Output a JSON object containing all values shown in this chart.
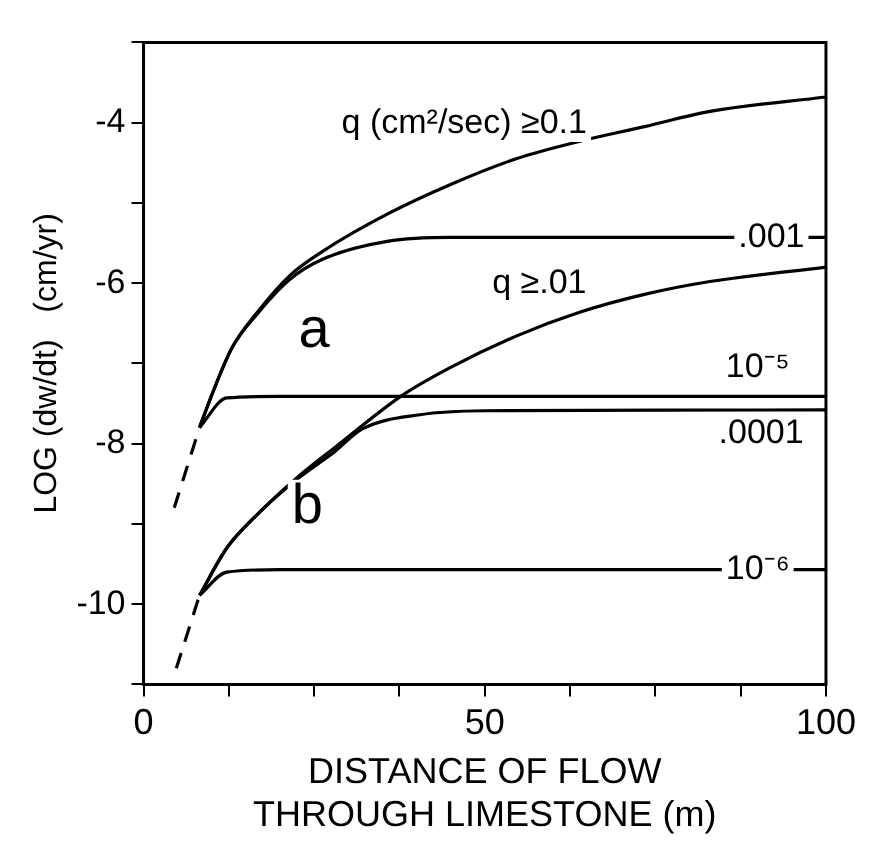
{
  "chart_data": {
    "type": "line",
    "xlabel": "DISTANCE OF FLOW THROUGH LIMESTONE (m)",
    "ylabel": "LOG (dw/dt)   (cm/yr)",
    "xlim": [
      0,
      100
    ],
    "xticks": [
      0,
      {
        "value": 12.5,
        "label": null
      },
      {
        "value": 25,
        "label": null
      },
      {
        "value": 37.5,
        "label": null
      },
      50,
      {
        "value": 62.5,
        "label": null
      },
      {
        "value": 75,
        "label": null
      },
      {
        "value": 87.5,
        "label": null
      },
      100
    ],
    "ylim": [
      -11,
      -3
    ],
    "yticks": [
      {
        "value": -11,
        "label": null
      },
      -10,
      {
        "value": -9,
        "label": null
      },
      -8,
      {
        "value": -7,
        "label": null
      },
      -6,
      {
        "value": -5,
        "label": null
      },
      -4,
      {
        "value": -3,
        "label": null
      }
    ],
    "grid": false,
    "legend": false,
    "marker": "none",
    "line_style": "solid",
    "series": [
      {
        "color": "#000000",
        "x": [
          8.2,
          10.2,
          13,
          16.7,
          21.5,
          26.3,
          35.7,
          45,
          54.6,
          64,
          73.4,
          83,
          100
        ],
        "values": [
          -7.8,
          -7.35,
          -6.8,
          -6.36,
          -5.9,
          -5.6,
          -5.14,
          -4.77,
          -4.45,
          -4.23,
          -4.05,
          -3.86,
          -3.68
        ]
      },
      {
        "color": "#000000",
        "x": [
          8.2,
          10.2,
          13,
          16.7,
          21.5,
          26.3,
          35.7,
          45,
          100
        ],
        "values": [
          -7.8,
          -7.35,
          -6.8,
          -6.38,
          -5.95,
          -5.7,
          -5.48,
          -5.43,
          -5.43
        ]
      },
      {
        "color": "#000000",
        "x": [
          8.2,
          12.2,
          20,
          100
        ],
        "values": [
          -7.8,
          -7.43,
          -7.41,
          -7.41
        ]
      },
      {
        "color": "#000000",
        "x": [
          8.2,
          12.2,
          16.7,
          22.4,
          28,
          37.7,
          45,
          54.6,
          64,
          73.4,
          83,
          100
        ],
        "values": [
          -9.89,
          -9.3,
          -8.88,
          -8.43,
          -8.05,
          -7.41,
          -7.05,
          -6.66,
          -6.36,
          -6.14,
          -5.98,
          -5.8
        ]
      },
      {
        "color": "#000000",
        "x": [
          8.2,
          12.2,
          16.7,
          22.4,
          28,
          32,
          40.5,
          49.9,
          100
        ],
        "values": [
          -9.89,
          -9.3,
          -8.88,
          -8.45,
          -8.1,
          -7.82,
          -7.64,
          -7.59,
          -7.58
        ]
      },
      {
        "color": "#000000",
        "x": [
          8.2,
          12.2,
          20,
          100
        ],
        "values": [
          -9.89,
          -9.6,
          -9.57,
          -9.57
        ]
      },
      {
        "color": "#000000",
        "line_style": "dashed",
        "x": [
          4.5,
          8.2
        ],
        "values": [
          -8.8,
          -7.8
        ]
      },
      {
        "color": "#000000",
        "line_style": "dashed",
        "x": [
          4.8,
          8.2
        ],
        "values": [
          -10.8,
          -9.89
        ]
      }
    ],
    "annotations": [
      "q (cm²/sec) ≥0.1",
      {
        "text": ".001",
        "x": 92,
        "y": -5.43
      },
      "q ≥.01",
      {
        "text": "a",
        "x": 25,
        "y": -6.6
      },
      {
        "text": "10⁻⁵",
        "x": 90,
        "y": -7.05
      },
      ".0001",
      {
        "text": "b",
        "x": 24,
        "y": -8.8
      },
      {
        "text": "10⁻⁶",
        "x": 90,
        "y": -9.57
      }
    ]
  }
}
